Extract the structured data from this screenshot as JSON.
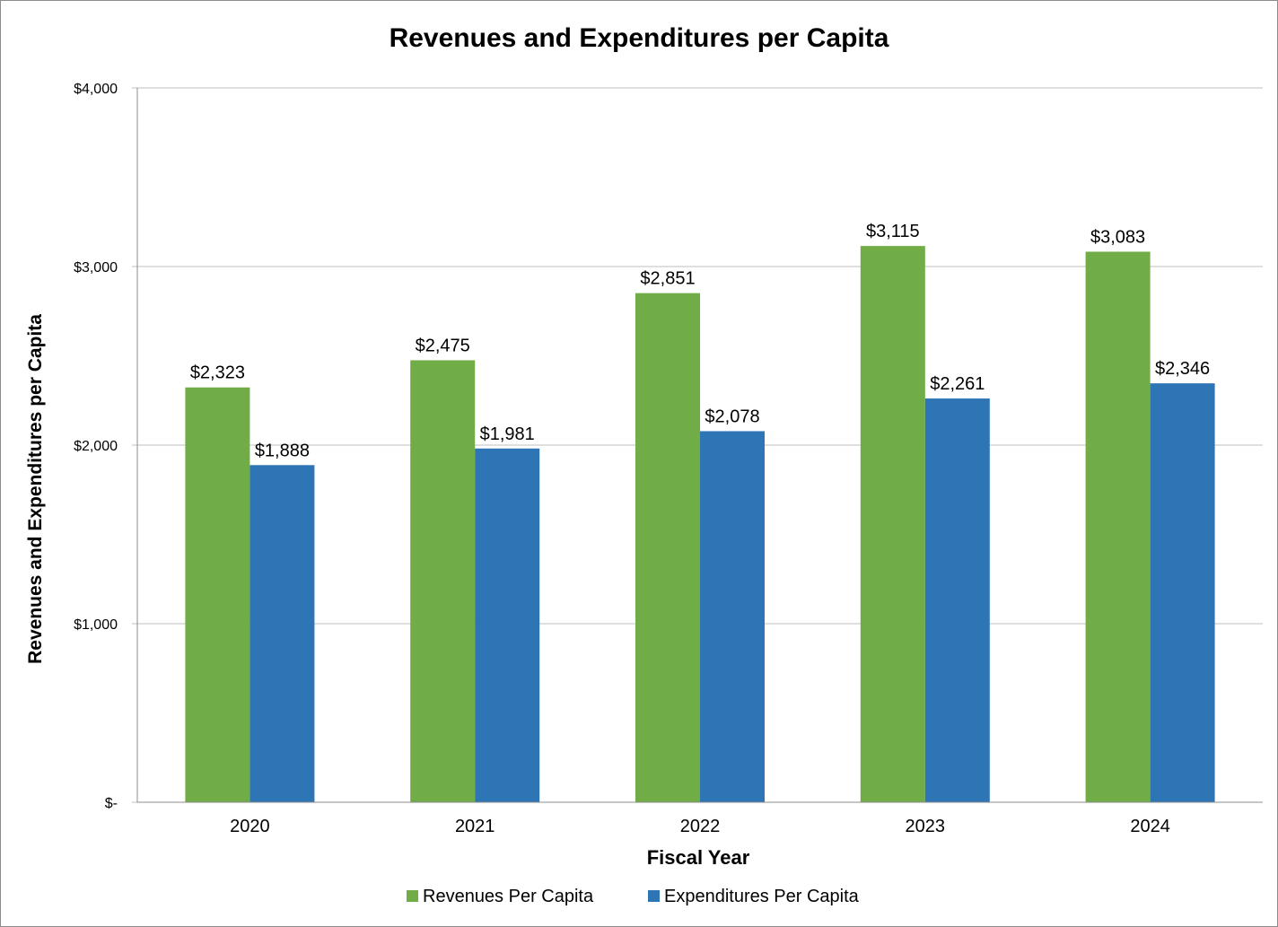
{
  "chart_data": {
    "type": "bar",
    "title": "Revenues and Expenditures per Capita",
    "xlabel": "Fiscal Year",
    "ylabel": "Revenues and Expenditures per Capita",
    "categories": [
      "2020",
      "2021",
      "2022",
      "2023",
      "2024"
    ],
    "series": [
      {
        "name": "Revenues Per Capita",
        "color": "#70ad47",
        "values": [
          2323,
          2475,
          2851,
          3115,
          3083
        ],
        "labels": [
          "$2,323",
          "$2,475",
          "$2,851",
          "$3,115",
          "$3,083"
        ]
      },
      {
        "name": "Expenditures Per Capita",
        "color": "#2e75b6",
        "values": [
          1888,
          1981,
          2078,
          2261,
          2346
        ],
        "labels": [
          "$1,888",
          "$1,981",
          "$2,078",
          "$2,261",
          "$2,346"
        ]
      }
    ],
    "ylim": [
      0,
      4000
    ],
    "yticks": [
      0,
      1000,
      2000,
      3000,
      4000
    ],
    "ytick_labels": [
      "$-",
      "$1,000",
      "$2,000",
      "$3,000",
      "$4,000"
    ],
    "grid": true,
    "legend_position": "bottom",
    "gridline_color": "#bfbfbf"
  }
}
